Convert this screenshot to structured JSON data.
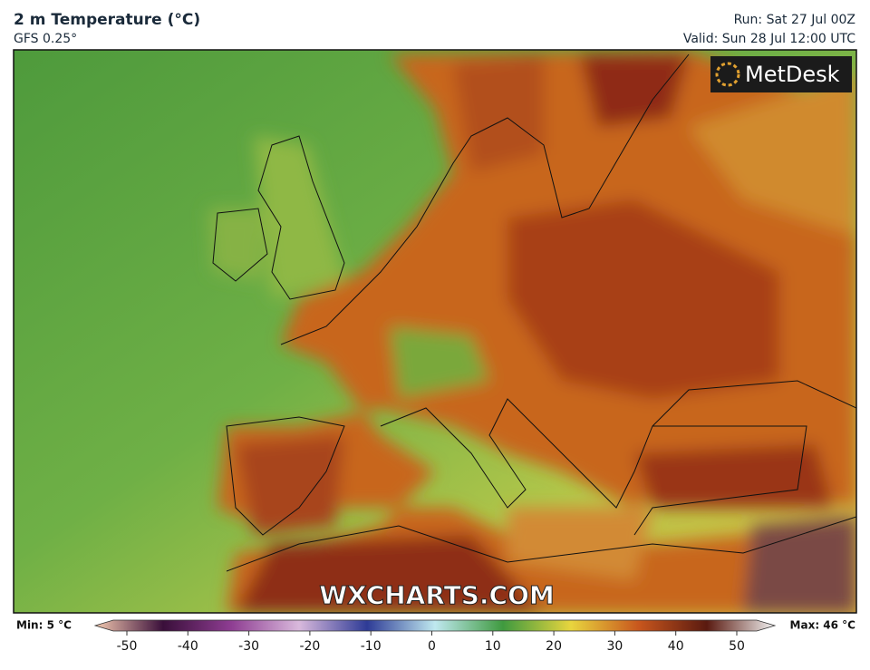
{
  "header": {
    "title": "2 m Temperature (°C)",
    "model": "GFS 0.25°",
    "run": "Run: Sat 27 Jul 00Z",
    "valid": "Valid: Sun 28 Jul 12:00 UTC"
  },
  "map": {
    "logo": "MetDesk",
    "watermark": "WXCHARTS.COM"
  },
  "colorbar": {
    "min_label": "Min: 5 °C",
    "max_label": "Max: 46 °C",
    "ticks": [
      -50,
      -40,
      -30,
      -20,
      -10,
      0,
      10,
      20,
      30,
      40,
      50
    ]
  }
}
